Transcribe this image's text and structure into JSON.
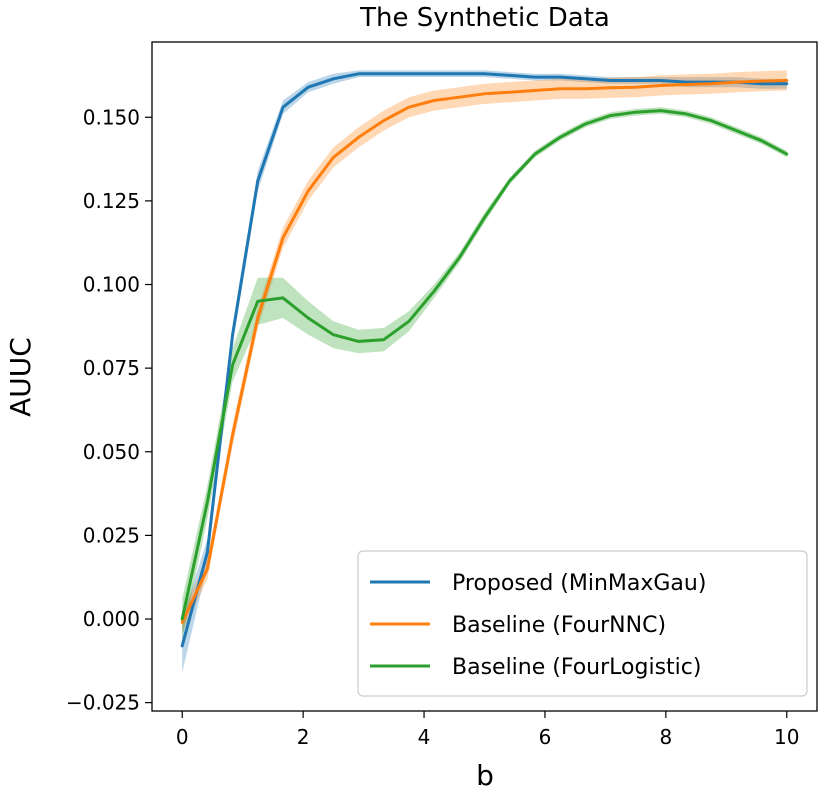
{
  "chart_data": {
    "type": "line",
    "title": "The Synthetic Data",
    "xlabel": "b",
    "ylabel": "AUUC",
    "xlim": [
      -0.5,
      10.5
    ],
    "ylim": [
      -0.0275,
      0.1725
    ],
    "xticks": [
      0,
      2,
      4,
      6,
      8,
      10
    ],
    "xtick_labels": [
      "0",
      "2",
      "4",
      "6",
      "8",
      "10"
    ],
    "yticks": [
      -0.025,
      0.0,
      0.025,
      0.05,
      0.075,
      0.1,
      0.125,
      0.15
    ],
    "ytick_labels": [
      "−0.025",
      "0.000",
      "0.025",
      "0.050",
      "0.075",
      "0.100",
      "0.125",
      "0.150"
    ],
    "grid": false,
    "legend_position": "lower-right",
    "x": [
      0,
      0.417,
      0.833,
      1.25,
      1.667,
      2.083,
      2.5,
      2.917,
      3.333,
      3.75,
      4.167,
      4.583,
      5.0,
      5.417,
      5.833,
      6.25,
      6.667,
      7.083,
      7.5,
      7.917,
      8.333,
      8.75,
      9.167,
      9.583,
      10.0
    ],
    "series": [
      {
        "name": "Proposed (MinMaxGau)",
        "color": "#1f77b4",
        "values": [
          -0.008,
          0.02,
          0.085,
          0.131,
          0.153,
          0.159,
          0.1615,
          0.163,
          0.163,
          0.163,
          0.163,
          0.163,
          0.163,
          0.1625,
          0.162,
          0.162,
          0.1615,
          0.161,
          0.161,
          0.161,
          0.1605,
          0.1605,
          0.1605,
          0.16,
          0.16
        ],
        "band": [
          0.008,
          0.004,
          0.003,
          0.003,
          0.002,
          0.0015,
          0.0015,
          0.001,
          0.001,
          0.001,
          0.001,
          0.001,
          0.001,
          0.001,
          0.001,
          0.001,
          0.001,
          0.001,
          0.001,
          0.001,
          0.0015,
          0.0015,
          0.0015,
          0.0015,
          0.0015
        ]
      },
      {
        "name": "Baseline (FourNNC)",
        "color": "#ff7f0e",
        "values": [
          -0.001,
          0.015,
          0.055,
          0.09,
          0.114,
          0.128,
          0.138,
          0.144,
          0.149,
          0.153,
          0.155,
          0.156,
          0.157,
          0.1575,
          0.158,
          0.1585,
          0.1585,
          0.1588,
          0.159,
          0.1595,
          0.1598,
          0.16,
          0.1605,
          0.1608,
          0.161
        ],
        "band": [
          0.003,
          0.003,
          0.003,
          0.003,
          0.003,
          0.003,
          0.003,
          0.003,
          0.003,
          0.003,
          0.003,
          0.003,
          0.003,
          0.003,
          0.003,
          0.003,
          0.003,
          0.003,
          0.003,
          0.003,
          0.003,
          0.003,
          0.003,
          0.003,
          0.003
        ]
      },
      {
        "name": "Baseline (FourLogistic)",
        "color": "#2ca02c",
        "values": [
          0.0,
          0.035,
          0.076,
          0.095,
          0.096,
          0.09,
          0.085,
          0.083,
          0.0835,
          0.089,
          0.098,
          0.108,
          0.12,
          0.131,
          0.139,
          0.144,
          0.148,
          0.1505,
          0.1515,
          0.152,
          0.151,
          0.149,
          0.146,
          0.143,
          0.139
        ],
        "band": [
          0.006,
          0.005,
          0.005,
          0.007,
          0.006,
          0.005,
          0.004,
          0.0035,
          0.0035,
          0.003,
          0.002,
          0.0015,
          0.0015,
          0.001,
          0.001,
          0.001,
          0.001,
          0.001,
          0.001,
          0.001,
          0.001,
          0.001,
          0.001,
          0.001,
          0.001
        ]
      }
    ]
  }
}
